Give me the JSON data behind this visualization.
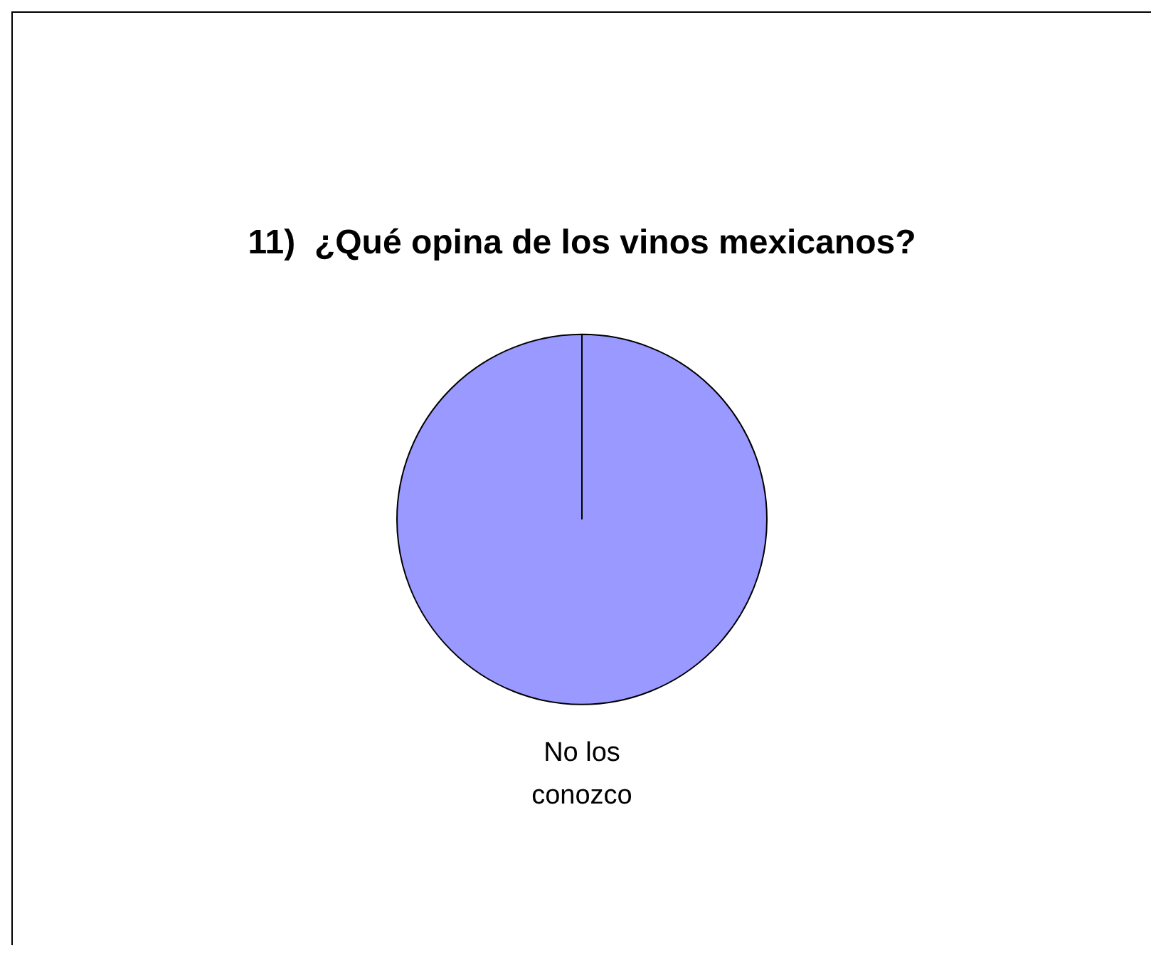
{
  "chart_data": {
    "type": "pie",
    "title": "11)  ¿Qué opina de los vinos mexicanos?",
    "categories": [
      "No los conozco"
    ],
    "values": [
      100
    ],
    "colors": [
      "#9999ff"
    ],
    "legend": false
  }
}
